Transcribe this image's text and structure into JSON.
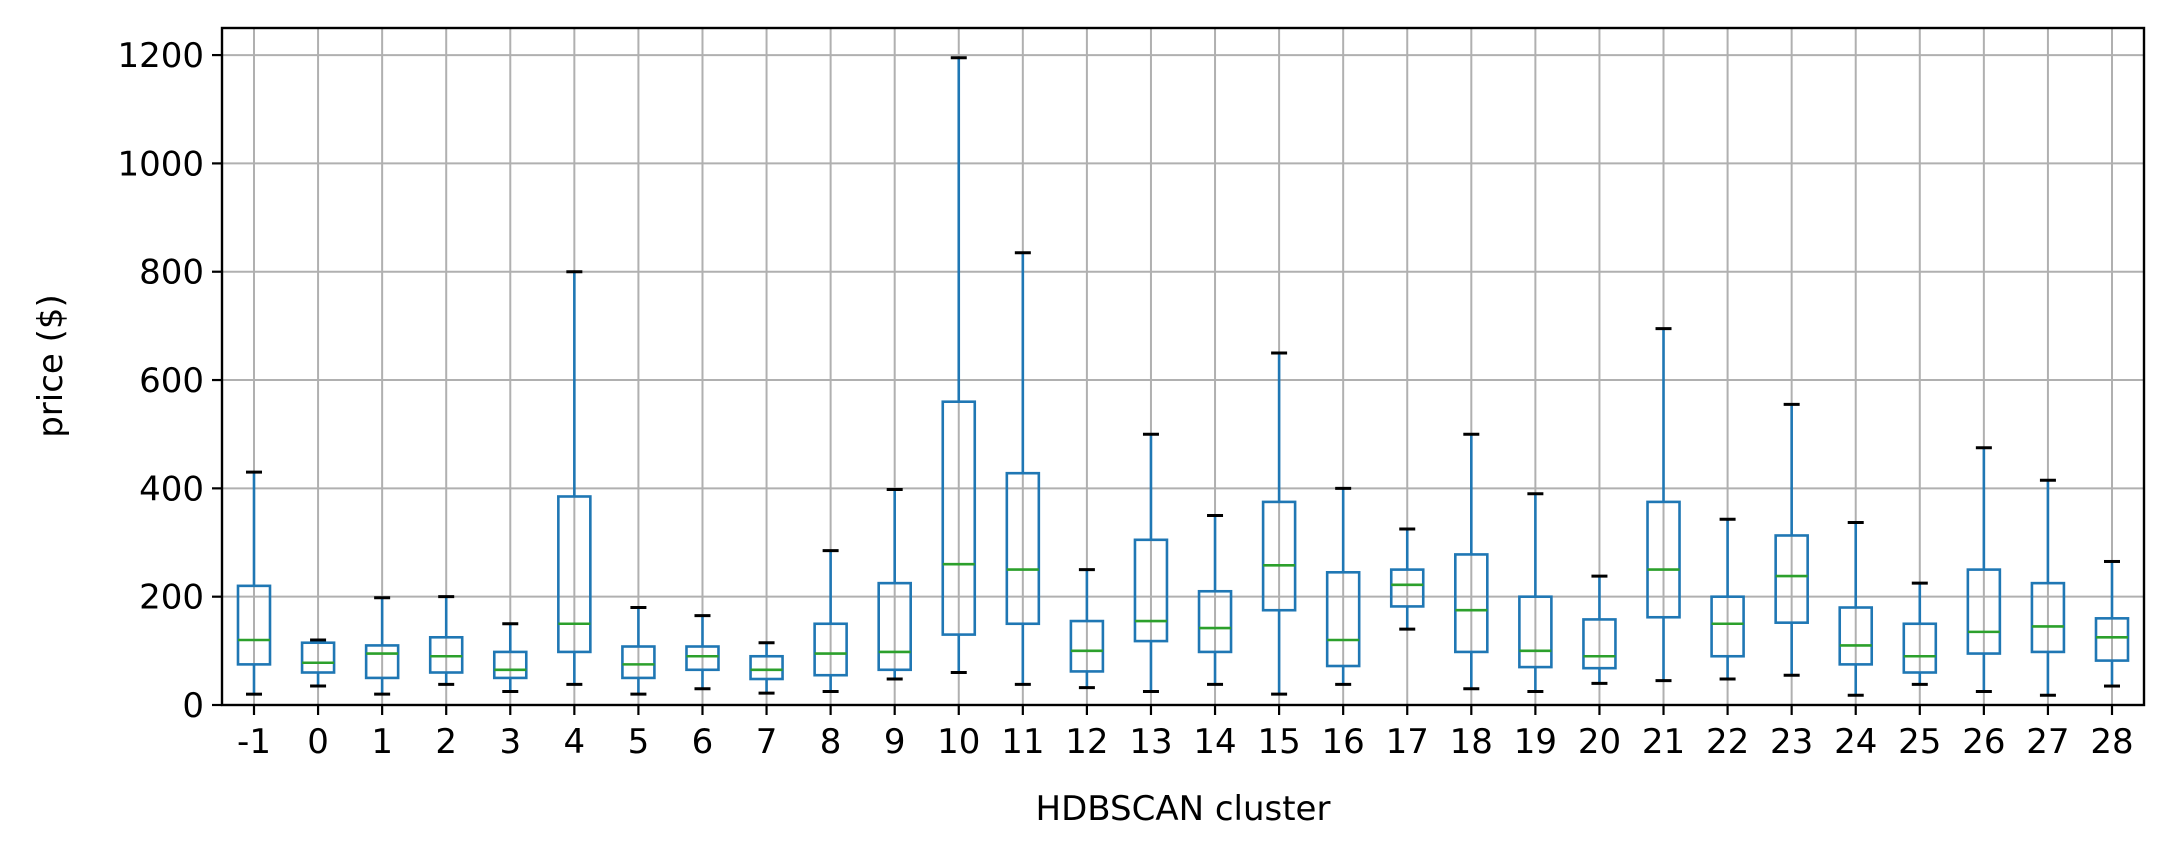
{
  "chart_data": {
    "type": "boxplot",
    "xlabel": "HDBSCAN cluster",
    "ylabel": "price ($)",
    "ylim": [
      0,
      1250
    ],
    "yticks": [
      0,
      200,
      400,
      600,
      800,
      1000,
      1200
    ],
    "grid": true,
    "legend": "none",
    "colors": {
      "box": "#1f77b4",
      "median": "#2ca02c",
      "cap": "#000000",
      "grid": "#b0b0b0"
    },
    "boxes": [
      {
        "label": "-1",
        "whisker_low": 20,
        "q1": 75,
        "median": 120,
        "q3": 220,
        "whisker_high": 430
      },
      {
        "label": "0",
        "whisker_low": 35,
        "q1": 60,
        "median": 78,
        "q3": 115,
        "whisker_high": 120
      },
      {
        "label": "1",
        "whisker_low": 20,
        "q1": 50,
        "median": 95,
        "q3": 110,
        "whisker_high": 198
      },
      {
        "label": "2",
        "whisker_low": 38,
        "q1": 60,
        "median": 90,
        "q3": 125,
        "whisker_high": 200
      },
      {
        "label": "3",
        "whisker_low": 25,
        "q1": 50,
        "median": 65,
        "q3": 98,
        "whisker_high": 150
      },
      {
        "label": "4",
        "whisker_low": 38,
        "q1": 98,
        "median": 150,
        "q3": 385,
        "whisker_high": 800
      },
      {
        "label": "5",
        "whisker_low": 20,
        "q1": 50,
        "median": 75,
        "q3": 108,
        "whisker_high": 180
      },
      {
        "label": "6",
        "whisker_low": 30,
        "q1": 65,
        "median": 90,
        "q3": 108,
        "whisker_high": 165
      },
      {
        "label": "7",
        "whisker_low": 22,
        "q1": 48,
        "median": 65,
        "q3": 90,
        "whisker_high": 115
      },
      {
        "label": "8",
        "whisker_low": 25,
        "q1": 55,
        "median": 95,
        "q3": 150,
        "whisker_high": 285
      },
      {
        "label": "9",
        "whisker_low": 48,
        "q1": 65,
        "median": 98,
        "q3": 225,
        "whisker_high": 398
      },
      {
        "label": "10",
        "whisker_low": 60,
        "q1": 130,
        "median": 260,
        "q3": 560,
        "whisker_high": 1195
      },
      {
        "label": "11",
        "whisker_low": 38,
        "q1": 150,
        "median": 250,
        "q3": 428,
        "whisker_high": 835
      },
      {
        "label": "12",
        "whisker_low": 32,
        "q1": 62,
        "median": 100,
        "q3": 155,
        "whisker_high": 250
      },
      {
        "label": "13",
        "whisker_low": 25,
        "q1": 118,
        "median": 155,
        "q3": 305,
        "whisker_high": 500
      },
      {
        "label": "14",
        "whisker_low": 38,
        "q1": 98,
        "median": 142,
        "q3": 210,
        "whisker_high": 350
      },
      {
        "label": "15",
        "whisker_low": 20,
        "q1": 175,
        "median": 258,
        "q3": 375,
        "whisker_high": 650
      },
      {
        "label": "16",
        "whisker_low": 38,
        "q1": 72,
        "median": 120,
        "q3": 245,
        "whisker_high": 400
      },
      {
        "label": "17",
        "whisker_low": 140,
        "q1": 182,
        "median": 222,
        "q3": 250,
        "whisker_high": 325
      },
      {
        "label": "18",
        "whisker_low": 30,
        "q1": 98,
        "median": 175,
        "q3": 278,
        "whisker_high": 500
      },
      {
        "label": "19",
        "whisker_low": 25,
        "q1": 70,
        "median": 100,
        "q3": 200,
        "whisker_high": 390
      },
      {
        "label": "20",
        "whisker_low": 40,
        "q1": 68,
        "median": 90,
        "q3": 158,
        "whisker_high": 238
      },
      {
        "label": "21",
        "whisker_low": 45,
        "q1": 162,
        "median": 250,
        "q3": 375,
        "whisker_high": 695
      },
      {
        "label": "22",
        "whisker_low": 48,
        "q1": 90,
        "median": 150,
        "q3": 200,
        "whisker_high": 343
      },
      {
        "label": "23",
        "whisker_low": 55,
        "q1": 152,
        "median": 238,
        "q3": 313,
        "whisker_high": 555
      },
      {
        "label": "24",
        "whisker_low": 18,
        "q1": 75,
        "median": 110,
        "q3": 180,
        "whisker_high": 337
      },
      {
        "label": "25",
        "whisker_low": 38,
        "q1": 60,
        "median": 90,
        "q3": 150,
        "whisker_high": 225
      },
      {
        "label": "26",
        "whisker_low": 25,
        "q1": 95,
        "median": 135,
        "q3": 250,
        "whisker_high": 475
      },
      {
        "label": "27",
        "whisker_low": 18,
        "q1": 98,
        "median": 145,
        "q3": 225,
        "whisker_high": 415
      },
      {
        "label": "28",
        "whisker_low": 35,
        "q1": 82,
        "median": 125,
        "q3": 160,
        "whisker_high": 265
      }
    ]
  }
}
